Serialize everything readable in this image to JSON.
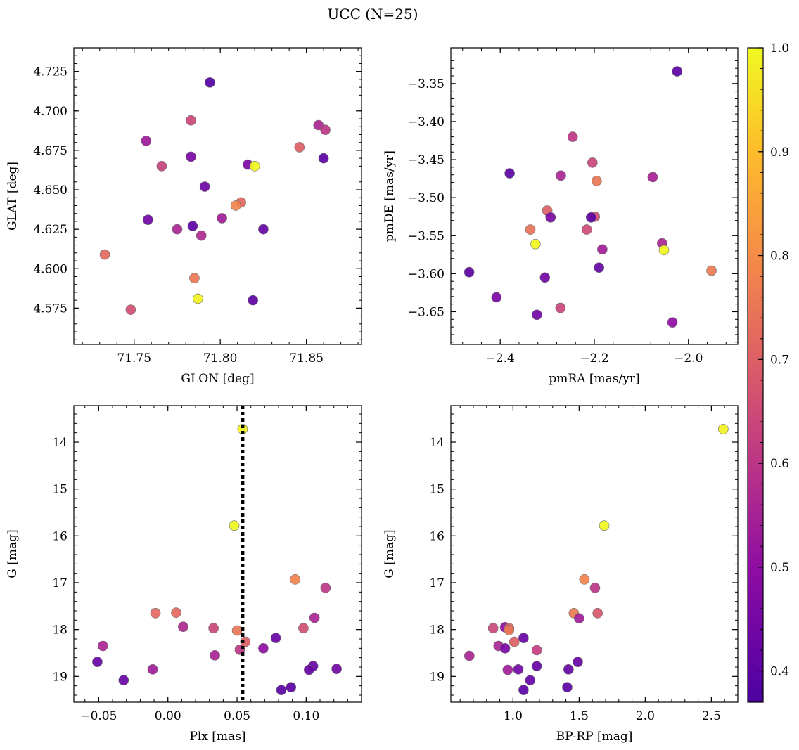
{
  "figure": {
    "title": "UCC (N=25)"
  },
  "colorbar": {
    "range": [
      0.37,
      1.0
    ],
    "ticks": [
      0.4,
      0.5,
      0.6,
      0.7,
      0.8,
      0.9,
      1.0
    ],
    "tick_labels": [
      "0.4",
      "0.5",
      "0.6",
      "0.7",
      "0.8",
      "0.9",
      "1.0"
    ],
    "colormap": "plasma"
  },
  "chart_data": [
    {
      "type": "scatter",
      "xlabel": "GLON [deg]",
      "ylabel": "GLAT [deg]",
      "xlim": [
        71.715,
        71.882
      ],
      "ylim": [
        4.552,
        4.74
      ],
      "xticks": [
        71.75,
        71.8,
        71.85
      ],
      "xtick_labels": [
        "71.75",
        "71.80",
        "71.85"
      ],
      "yticks": [
        4.575,
        4.6,
        4.625,
        4.65,
        4.675,
        4.7,
        4.725
      ],
      "ytick_labels": [
        "4.575",
        "4.600",
        "4.625",
        "4.650",
        "4.675",
        "4.700",
        "4.725"
      ],
      "x_minor_step": 0.01,
      "y_minor_step": 0.005,
      "points": [
        {
          "x": 71.794,
          "y": 4.718,
          "c": 0.38
        },
        {
          "x": 71.783,
          "y": 4.694,
          "c": 0.64
        },
        {
          "x": 71.857,
          "y": 4.691,
          "c": 0.56
        },
        {
          "x": 71.861,
          "y": 4.688,
          "c": 0.6
        },
        {
          "x": 71.757,
          "y": 4.681,
          "c": 0.53
        },
        {
          "x": 71.846,
          "y": 4.677,
          "c": 0.7
        },
        {
          "x": 71.783,
          "y": 4.671,
          "c": 0.46
        },
        {
          "x": 71.86,
          "y": 4.67,
          "c": 0.4
        },
        {
          "x": 71.816,
          "y": 4.666,
          "c": 0.46
        },
        {
          "x": 71.82,
          "y": 4.665,
          "c": 1.0
        },
        {
          "x": 71.766,
          "y": 4.665,
          "c": 0.63
        },
        {
          "x": 71.791,
          "y": 4.652,
          "c": 0.43
        },
        {
          "x": 71.812,
          "y": 4.642,
          "c": 0.72
        },
        {
          "x": 71.809,
          "y": 4.64,
          "c": 0.78
        },
        {
          "x": 71.801,
          "y": 4.632,
          "c": 0.54
        },
        {
          "x": 71.758,
          "y": 4.631,
          "c": 0.44
        },
        {
          "x": 71.784,
          "y": 4.627,
          "c": 0.4
        },
        {
          "x": 71.775,
          "y": 4.625,
          "c": 0.56
        },
        {
          "x": 71.825,
          "y": 4.625,
          "c": 0.42
        },
        {
          "x": 71.789,
          "y": 4.621,
          "c": 0.57
        },
        {
          "x": 71.733,
          "y": 4.609,
          "c": 0.72
        },
        {
          "x": 71.785,
          "y": 4.594,
          "c": 0.75
        },
        {
          "x": 71.787,
          "y": 4.581,
          "c": 0.99
        },
        {
          "x": 71.819,
          "y": 4.58,
          "c": 0.4
        },
        {
          "x": 71.748,
          "y": 4.574,
          "c": 0.66
        }
      ]
    },
    {
      "type": "scatter",
      "xlabel": "pmRA [mas/yr]",
      "ylabel": "pmDE [mas/yr]",
      "xlim": [
        -2.505,
        -1.895
      ],
      "ylim": [
        -3.693,
        -3.303
      ],
      "xticks": [
        -2.4,
        -2.2,
        -2.0
      ],
      "xtick_labels": [
        "−2.4",
        "−2.2",
        "−2.0"
      ],
      "yticks": [
        -3.65,
        -3.6,
        -3.55,
        -3.5,
        -3.45,
        -3.4,
        -3.35
      ],
      "ytick_labels": [
        "−3.65",
        "−3.60",
        "−3.55",
        "−3.50",
        "−3.45",
        "−3.40",
        "−3.35"
      ],
      "x_minor_step": 0.04,
      "y_minor_step": 0.01,
      "points": [
        {
          "x": -2.024,
          "y": -3.334,
          "c": 0.4
        },
        {
          "x": -2.246,
          "y": -3.42,
          "c": 0.6
        },
        {
          "x": -2.204,
          "y": -3.454,
          "c": 0.64
        },
        {
          "x": -2.38,
          "y": -3.468,
          "c": 0.4
        },
        {
          "x": -2.271,
          "y": -3.471,
          "c": 0.56
        },
        {
          "x": -2.076,
          "y": -3.473,
          "c": 0.55
        },
        {
          "x": -2.195,
          "y": -3.478,
          "c": 0.75
        },
        {
          "x": -2.3,
          "y": -3.517,
          "c": 0.7
        },
        {
          "x": -2.199,
          "y": -3.525,
          "c": 0.66
        },
        {
          "x": -2.207,
          "y": -3.526,
          "c": 0.4
        },
        {
          "x": -2.293,
          "y": -3.526,
          "c": 0.46
        },
        {
          "x": -2.336,
          "y": -3.542,
          "c": 0.74
        },
        {
          "x": -2.216,
          "y": -3.542,
          "c": 0.65
        },
        {
          "x": -2.325,
          "y": -3.561,
          "c": 1.0
        },
        {
          "x": -2.056,
          "y": -3.56,
          "c": 0.56
        },
        {
          "x": -2.052,
          "y": -3.569,
          "c": 1.0
        },
        {
          "x": -2.183,
          "y": -3.568,
          "c": 0.54
        },
        {
          "x": -2.19,
          "y": -3.592,
          "c": 0.42
        },
        {
          "x": -1.951,
          "y": -3.596,
          "c": 0.76
        },
        {
          "x": -2.466,
          "y": -3.598,
          "c": 0.4
        },
        {
          "x": -2.305,
          "y": -3.605,
          "c": 0.44
        },
        {
          "x": -2.408,
          "y": -3.631,
          "c": 0.46
        },
        {
          "x": -2.272,
          "y": -3.645,
          "c": 0.64
        },
        {
          "x": -2.322,
          "y": -3.654,
          "c": 0.44
        },
        {
          "x": -2.034,
          "y": -3.664,
          "c": 0.5
        }
      ]
    },
    {
      "type": "scatter",
      "xlabel": "Plx [mas]",
      "ylabel": "G [mag]",
      "xlim": [
        -0.068,
        0.14
      ],
      "ylim": [
        19.55,
        13.22
      ],
      "xticks": [
        -0.05,
        0.0,
        0.05,
        0.1
      ],
      "xtick_labels": [
        "−0.05",
        "0.00",
        "0.05",
        "0.10"
      ],
      "yticks": [
        14,
        15,
        16,
        17,
        18,
        19
      ],
      "ytick_labels": [
        "14",
        "15",
        "16",
        "17",
        "18",
        "19"
      ],
      "x_minor_step": 0.01,
      "y_minor_step": 0.2,
      "vline": 0.054,
      "points": [
        {
          "x": 0.054,
          "y": 13.72,
          "c": 0.99
        },
        {
          "x": 0.048,
          "y": 15.78,
          "c": 1.0
        },
        {
          "x": 0.092,
          "y": 16.93,
          "c": 0.78
        },
        {
          "x": 0.114,
          "y": 17.11,
          "c": 0.6
        },
        {
          "x": -0.009,
          "y": 17.65,
          "c": 0.72
        },
        {
          "x": 0.006,
          "y": 17.64,
          "c": 0.72
        },
        {
          "x": 0.106,
          "y": 17.75,
          "c": 0.56
        },
        {
          "x": 0.011,
          "y": 17.94,
          "c": 0.57
        },
        {
          "x": 0.098,
          "y": 17.97,
          "c": 0.66
        },
        {
          "x": 0.033,
          "y": 17.97,
          "c": 0.64
        },
        {
          "x": 0.05,
          "y": 18.02,
          "c": 0.75
        },
        {
          "x": 0.078,
          "y": 18.18,
          "c": 0.42
        },
        {
          "x": 0.056,
          "y": 18.26,
          "c": 0.7
        },
        {
          "x": -0.047,
          "y": 18.35,
          "c": 0.56
        },
        {
          "x": 0.069,
          "y": 18.4,
          "c": 0.5
        },
        {
          "x": 0.052,
          "y": 18.43,
          "c": 0.6
        },
        {
          "x": 0.034,
          "y": 18.55,
          "c": 0.56
        },
        {
          "x": -0.051,
          "y": 18.69,
          "c": 0.42
        },
        {
          "x": 0.105,
          "y": 18.78,
          "c": 0.42
        },
        {
          "x": 0.122,
          "y": 18.84,
          "c": 0.44
        },
        {
          "x": -0.011,
          "y": 18.85,
          "c": 0.54
        },
        {
          "x": 0.102,
          "y": 18.86,
          "c": 0.42
        },
        {
          "x": -0.032,
          "y": 19.08,
          "c": 0.42
        },
        {
          "x": 0.089,
          "y": 19.23,
          "c": 0.4
        },
        {
          "x": 0.082,
          "y": 19.29,
          "c": 0.4
        }
      ]
    },
    {
      "type": "scatter",
      "xlabel": "BP-RP [mag]",
      "ylabel": "G [mag]",
      "xlim": [
        0.53,
        2.7
      ],
      "ylim": [
        19.55,
        13.22
      ],
      "xticks": [
        1.0,
        1.5,
        2.0,
        2.5
      ],
      "xtick_labels": [
        "1.0",
        "1.5",
        "2.0",
        "2.5"
      ],
      "yticks": [
        14,
        15,
        16,
        17,
        18,
        19
      ],
      "ytick_labels": [
        "14",
        "15",
        "16",
        "17",
        "18",
        "19"
      ],
      "x_minor_step": 0.1,
      "y_minor_step": 0.2,
      "points": [
        {
          "x": 2.59,
          "y": 13.72,
          "c": 0.99
        },
        {
          "x": 1.69,
          "y": 15.78,
          "c": 1.0
        },
        {
          "x": 1.54,
          "y": 16.93,
          "c": 0.78
        },
        {
          "x": 1.62,
          "y": 17.11,
          "c": 0.6
        },
        {
          "x": 1.46,
          "y": 17.65,
          "c": 0.76
        },
        {
          "x": 1.64,
          "y": 17.65,
          "c": 0.68
        },
        {
          "x": 1.5,
          "y": 17.76,
          "c": 0.54
        },
        {
          "x": 0.85,
          "y": 17.97,
          "c": 0.64
        },
        {
          "x": 0.94,
          "y": 17.95,
          "c": 0.5
        },
        {
          "x": 0.97,
          "y": 17.97,
          "c": 0.72
        },
        {
          "x": 0.97,
          "y": 18.01,
          "c": 0.75
        },
        {
          "x": 1.08,
          "y": 18.18,
          "c": 0.42
        },
        {
          "x": 1.01,
          "y": 18.26,
          "c": 0.7
        },
        {
          "x": 0.89,
          "y": 18.35,
          "c": 0.56
        },
        {
          "x": 0.94,
          "y": 18.4,
          "c": 0.46
        },
        {
          "x": 1.18,
          "y": 18.44,
          "c": 0.62
        },
        {
          "x": 0.67,
          "y": 18.56,
          "c": 0.56
        },
        {
          "x": 1.49,
          "y": 18.69,
          "c": 0.42
        },
        {
          "x": 1.18,
          "y": 18.78,
          "c": 0.42
        },
        {
          "x": 1.42,
          "y": 18.85,
          "c": 0.42
        },
        {
          "x": 1.04,
          "y": 18.85,
          "c": 0.44
        },
        {
          "x": 0.96,
          "y": 18.86,
          "c": 0.54
        },
        {
          "x": 1.13,
          "y": 19.08,
          "c": 0.42
        },
        {
          "x": 1.41,
          "y": 19.23,
          "c": 0.4
        },
        {
          "x": 1.08,
          "y": 19.29,
          "c": 0.4
        }
      ]
    }
  ]
}
